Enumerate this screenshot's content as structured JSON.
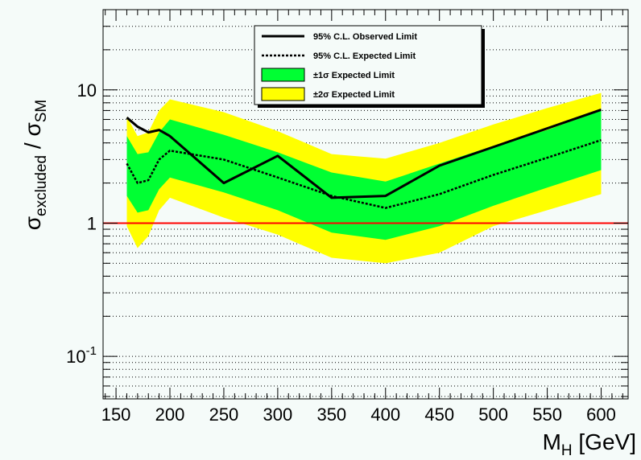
{
  "chart_data": {
    "type": "line",
    "x_label": "M_H [GeV]",
    "x_label_main": "M",
    "x_label_sub": "H",
    "x_label_unit": " [GeV]",
    "y_label_main": "σ",
    "y_label_sub1": "excluded",
    "y_label_slash": " / σ",
    "y_label_sub2": "SM",
    "y_scale": "log",
    "xlim": [
      138,
      625
    ],
    "ylim": [
      0.048,
      40
    ],
    "x_ticks": [
      150,
      200,
      250,
      300,
      350,
      400,
      450,
      500,
      550,
      600
    ],
    "x_tick_labels": [
      "150",
      "200",
      "250",
      "300",
      "350",
      "400",
      "450",
      "500",
      "550",
      "600"
    ],
    "y_ticks": [
      {
        "value": 10,
        "base": "10",
        "exp": ""
      },
      {
        "value": 1,
        "base": "1",
        "exp": ""
      },
      {
        "value": 0.1,
        "base": "10",
        "exp": "-1"
      }
    ],
    "grid": "horizontal dotted",
    "reference_line": {
      "y": 1,
      "color": "#ff0000"
    },
    "x": [
      160,
      170,
      180,
      190,
      200,
      250,
      300,
      350,
      400,
      450,
      500,
      550,
      600
    ],
    "series": [
      {
        "name": "95% C.L. Observed Limit",
        "style": "solid",
        "color": "#000000",
        "x": [
          160,
          170,
          180,
          190,
          200,
          250,
          300,
          350,
          400,
          450,
          600
        ],
        "values": [
          6.2,
          5.3,
          4.8,
          5.0,
          4.5,
          2.0,
          3.2,
          1.55,
          1.6,
          2.7,
          7.1
        ]
      },
      {
        "name": "95% C.L. Expected Limit",
        "style": "dotted",
        "color": "#000000",
        "x": [
          160,
          170,
          180,
          190,
          200,
          250,
          300,
          350,
          400,
          450,
          500,
          550,
          600
        ],
        "values": [
          2.8,
          2.0,
          2.1,
          3.0,
          3.5,
          3.0,
          2.2,
          1.6,
          1.3,
          1.65,
          2.3,
          3.1,
          4.2
        ]
      },
      {
        "name": "±1σ Expected Limit",
        "style": "band",
        "color": "#00ff33",
        "x": [
          160,
          170,
          180,
          190,
          200,
          250,
          300,
          350,
          400,
          450,
          500,
          550,
          600
        ],
        "lower": [
          1.6,
          1.2,
          1.25,
          1.8,
          2.2,
          1.7,
          1.25,
          0.85,
          0.75,
          0.95,
          1.35,
          1.85,
          2.5
        ],
        "upper": [
          4.5,
          3.3,
          3.4,
          4.8,
          6.0,
          4.6,
          3.4,
          2.4,
          2.05,
          2.8,
          3.8,
          5.0,
          7.0
        ]
      },
      {
        "name": "±2σ Expected Limit",
        "style": "band",
        "color": "#ffff00",
        "x": [
          160,
          170,
          180,
          190,
          200,
          250,
          300,
          350,
          400,
          450,
          500,
          550,
          600
        ],
        "lower": [
          0.95,
          0.65,
          0.8,
          1.25,
          1.55,
          1.1,
          0.82,
          0.55,
          0.5,
          0.6,
          0.95,
          1.25,
          1.65
        ],
        "upper": [
          6.3,
          4.5,
          4.8,
          7.0,
          8.5,
          6.8,
          4.9,
          3.3,
          3.05,
          4.0,
          5.5,
          7.3,
          9.5
        ]
      }
    ],
    "legend": {
      "placement": "top-center",
      "entries": [
        {
          "label": "95% C.L. Observed Limit",
          "kind": "solid"
        },
        {
          "label": "95% C.L. Expected Limit",
          "kind": "dotted"
        },
        {
          "label": "±1σ Expected Limit",
          "kind": "box",
          "color": "#00ff33"
        },
        {
          "label": "±2σ Expected Limit",
          "kind": "box",
          "color": "#ffff00"
        }
      ]
    },
    "colors": {
      "background": "#f5fbf9",
      "ref_line": "#ff0000",
      "band1": "#00ff33",
      "band2": "#ffff00"
    }
  }
}
